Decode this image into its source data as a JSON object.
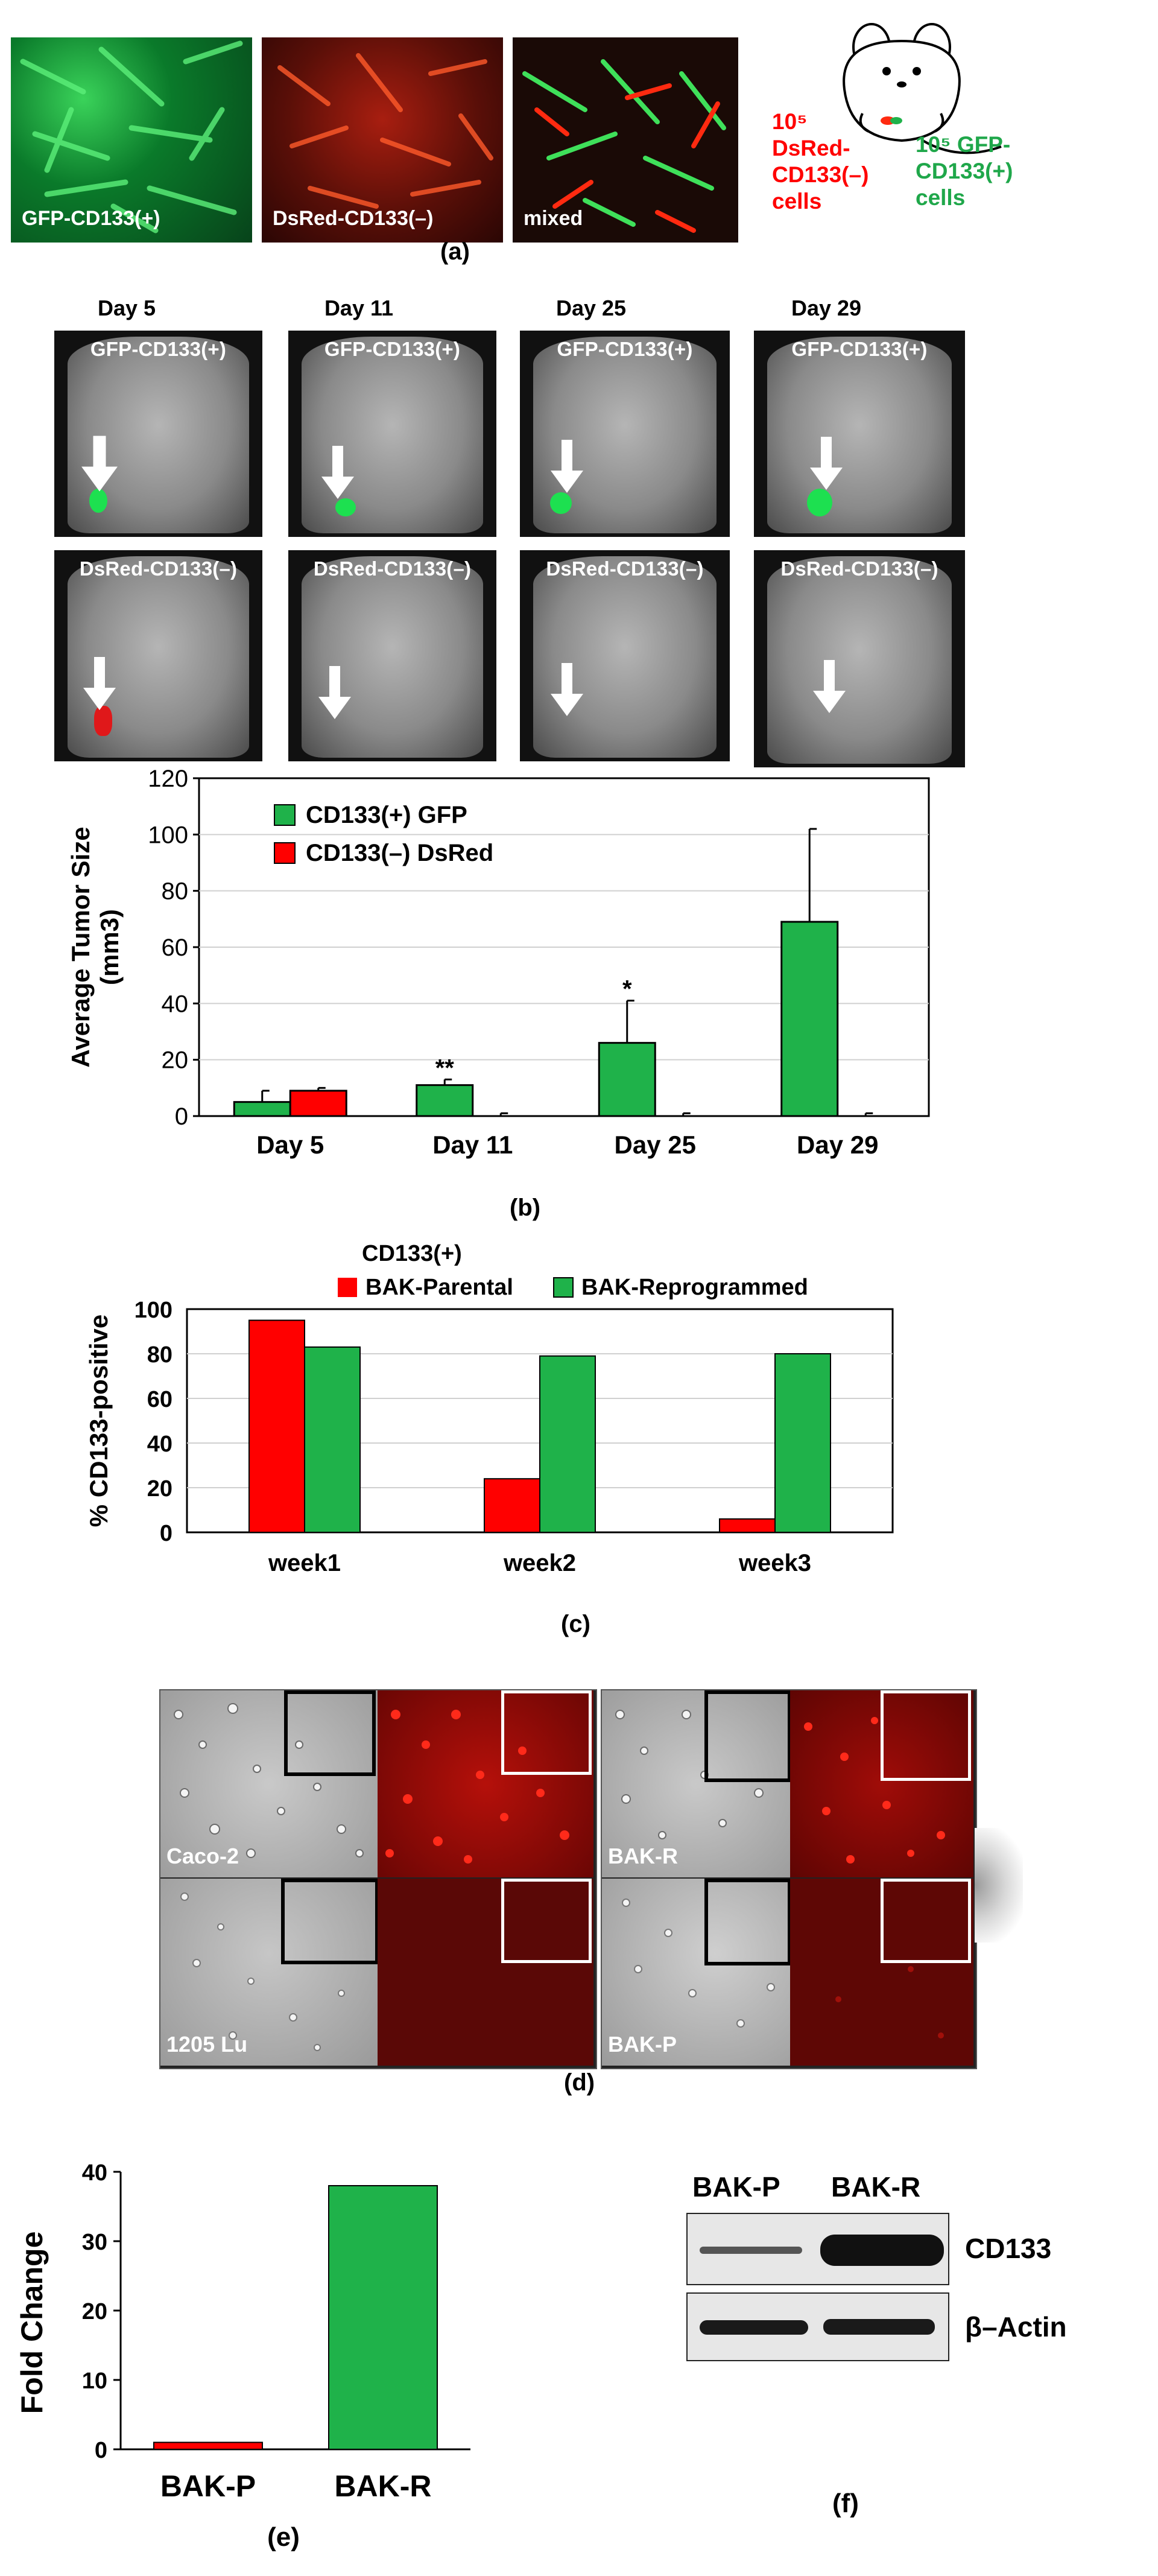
{
  "panel_a": {
    "micro_labels": [
      "GFP-CD133(+)",
      "DsRed-CD133(–)",
      "mixed"
    ],
    "schematic": {
      "red_label": [
        "10⁵",
        "DsRed-",
        "CD133(–)",
        "cells"
      ],
      "green_label": [
        "10⁵  GFP-",
        "CD133(+)",
        "cells"
      ]
    },
    "letter": "(a)"
  },
  "panel_b_images": {
    "days": [
      "Day 5",
      "Day 11",
      "Day 25",
      "Day 29"
    ],
    "top_row_label": "GFP-CD133(+)",
    "bottom_row_label": "DsRed-CD133(–)"
  },
  "chart_b": {
    "type": "bar",
    "categories": [
      "Day 5",
      "Day  11",
      "Day  25",
      "Day 29"
    ],
    "series": [
      {
        "name": "CD133(+) GFP",
        "color": "#1fb24a",
        "values": [
          5,
          11,
          26,
          69
        ],
        "errors": [
          4,
          2,
          15,
          33
        ]
      },
      {
        "name": "CD133(–) DsRed",
        "color": "#ff0000",
        "values": [
          9,
          0,
          0,
          0
        ],
        "errors": [
          1,
          1,
          1,
          1
        ]
      }
    ],
    "ylabel": [
      "Average Tumor Size",
      "(mm3)"
    ],
    "ylim": [
      0,
      120
    ],
    "yticks": [
      "0",
      "20",
      "40",
      "60",
      "80",
      "100",
      "120"
    ],
    "annotations": [
      "**",
      "*"
    ],
    "letter": "(b)"
  },
  "chart_c": {
    "type": "bar",
    "categories": [
      "week1",
      "week2",
      "week3"
    ],
    "legend_title": "CD133(+)",
    "series": [
      {
        "name": "BAK-Parental",
        "color": "#ff0000",
        "values": [
          95,
          24,
          6
        ]
      },
      {
        "name": "BAK-Reprogrammed",
        "color": "#1fb24a",
        "values": [
          83,
          79,
          80
        ]
      }
    ],
    "ylabel": "% CD133-positive",
    "ylim": [
      0,
      100
    ],
    "yticks": [
      "0",
      "20",
      "40",
      "60",
      "80",
      "100"
    ],
    "letter": "(c)"
  },
  "panel_d": {
    "labels": [
      "Caco-2",
      "1205 Lu",
      "BAK-R",
      "BAK-P"
    ],
    "letter": "(d)"
  },
  "chart_e": {
    "type": "bar",
    "categories": [
      "BAK-P",
      "BAK-R"
    ],
    "values": [
      1,
      38
    ],
    "colors": [
      "#ff0000",
      "#1fb24a"
    ],
    "ylabel": "Fold Change",
    "ylim": [
      0,
      40
    ],
    "yticks": [
      "0",
      "10",
      "20",
      "30",
      "40"
    ],
    "letter": "(e)"
  },
  "panel_f": {
    "lanes": [
      "BAK-P",
      "BAK-R"
    ],
    "bands": [
      "CD133",
      "β–Actin"
    ],
    "letter": "(f)"
  },
  "chart_data": [
    {
      "type": "bar",
      "categories": [
        "Day 5",
        "Day  11",
        "Day  25",
        "Day 29"
      ],
      "series": [
        {
          "name": "CD133(+) GFP",
          "values": [
            5,
            11,
            26,
            69
          ]
        },
        {
          "name": "CD133(–) DsRed",
          "values": [
            9,
            0,
            0,
            0
          ]
        }
      ],
      "ylabel": "Average Tumor Size (mm3)",
      "ylim": [
        0,
        120
      ]
    },
    {
      "type": "bar",
      "categories": [
        "week1",
        "week2",
        "week3"
      ],
      "series": [
        {
          "name": "BAK-Parental",
          "values": [
            95,
            24,
            6
          ]
        },
        {
          "name": "BAK-Reprogrammed",
          "values": [
            83,
            79,
            80
          ]
        }
      ],
      "ylabel": "% CD133-positive",
      "ylim": [
        0,
        100
      ]
    },
    {
      "type": "bar",
      "categories": [
        "BAK-P",
        "BAK-R"
      ],
      "values": [
        1,
        38
      ],
      "ylabel": "Fold Change",
      "ylim": [
        0,
        40
      ]
    }
  ]
}
